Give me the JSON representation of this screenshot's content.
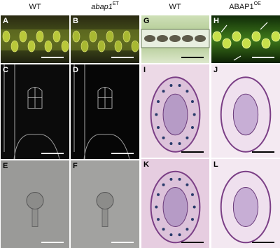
{
  "headers": [
    {
      "text": "WT"
    },
    {
      "text": "abap1",
      "sup": "ET"
    },
    {
      "text": "WT"
    },
    {
      "text": "ABAP1",
      "sup": "OE"
    }
  ],
  "panels": [
    "A",
    "B",
    "C",
    "D",
    "E",
    "F",
    "G",
    "H",
    "I",
    "J",
    "K",
    "L"
  ]
}
